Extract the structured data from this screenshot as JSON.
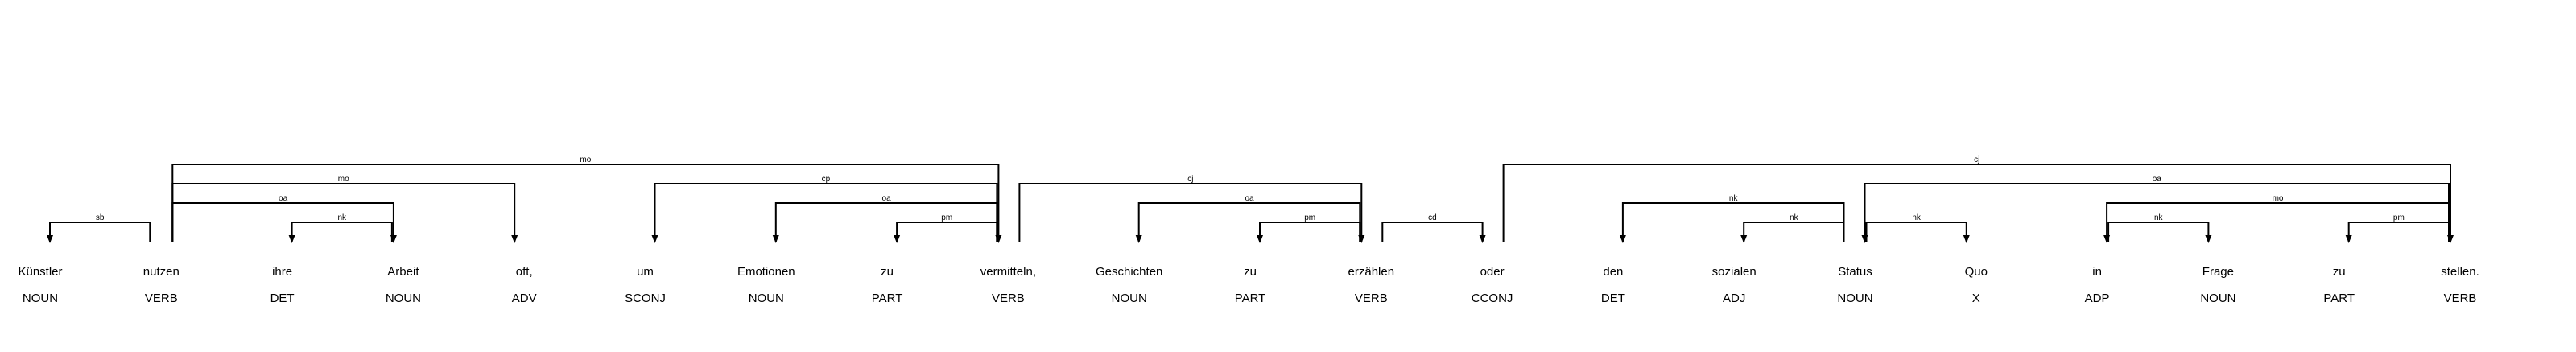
{
  "tokens": [
    {
      "text": "Künstler",
      "tag": "NOUN"
    },
    {
      "text": "nutzen",
      "tag": "VERB"
    },
    {
      "text": "ihre",
      "tag": "DET"
    },
    {
      "text": "Arbeit",
      "tag": "NOUN"
    },
    {
      "text": "oft,",
      "tag": "ADV"
    },
    {
      "text": "um",
      "tag": "SCONJ"
    },
    {
      "text": "Emotionen",
      "tag": "NOUN"
    },
    {
      "text": "zu",
      "tag": "PART"
    },
    {
      "text": "vermitteln,",
      "tag": "VERB"
    },
    {
      "text": "Geschichten",
      "tag": "NOUN"
    },
    {
      "text": "zu",
      "tag": "PART"
    },
    {
      "text": "erzählen",
      "tag": "VERB"
    },
    {
      "text": "oder",
      "tag": "CCONJ"
    },
    {
      "text": "den",
      "tag": "DET"
    },
    {
      "text": "sozialen",
      "tag": "ADJ"
    },
    {
      "text": "Status",
      "tag": "NOUN"
    },
    {
      "text": "Quo",
      "tag": "X"
    },
    {
      "text": "in",
      "tag": "ADP"
    },
    {
      "text": "Frage",
      "tag": "NOUN"
    },
    {
      "text": "zu",
      "tag": "PART"
    },
    {
      "text": "stellen.",
      "tag": "VERB"
    }
  ],
  "arcs": [
    {
      "head": 1,
      "dep": 0,
      "label": "sb"
    },
    {
      "head": 1,
      "dep": 8,
      "label": "mo"
    },
    {
      "head": 1,
      "dep": 4,
      "label": "mo"
    },
    {
      "head": 1,
      "dep": 3,
      "label": "oa"
    },
    {
      "head": 3,
      "dep": 2,
      "label": "nk"
    },
    {
      "head": 8,
      "dep": 5,
      "label": "cp"
    },
    {
      "head": 8,
      "dep": 6,
      "label": "oa"
    },
    {
      "head": 8,
      "dep": 7,
      "label": "pm"
    },
    {
      "head": 8,
      "dep": 11,
      "label": "cj"
    },
    {
      "head": 11,
      "dep": 9,
      "label": "oa"
    },
    {
      "head": 11,
      "dep": 10,
      "label": "pm"
    },
    {
      "head": 11,
      "dep": 12,
      "label": "cd"
    },
    {
      "head": 12,
      "dep": 20,
      "label": "cj"
    },
    {
      "head": 15,
      "dep": 13,
      "label": "nk"
    },
    {
      "head": 15,
      "dep": 14,
      "label": "nk"
    },
    {
      "head": 15,
      "dep": 16,
      "label": "nk"
    },
    {
      "head": 20,
      "dep": 15,
      "label": "oa"
    },
    {
      "head": 20,
      "dep": 17,
      "label": "mo"
    },
    {
      "head": 17,
      "dep": 18,
      "label": "nk"
    },
    {
      "head": 20,
      "dep": 19,
      "label": "pm"
    }
  ]
}
